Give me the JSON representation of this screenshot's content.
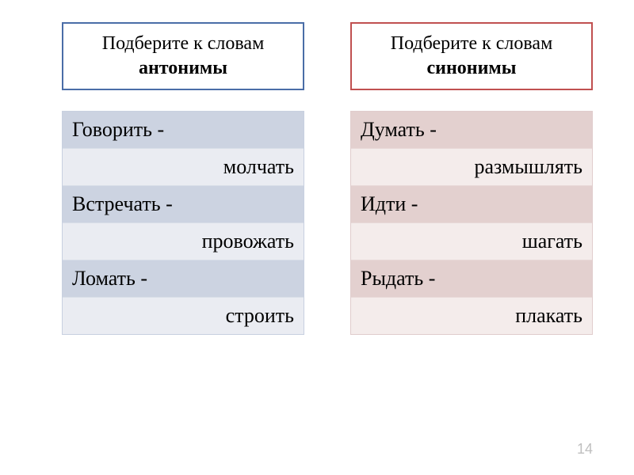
{
  "left": {
    "header": {
      "line1": "Подберите к словам",
      "line2": "антонимы",
      "border_color": "#4a6da7"
    },
    "rows": [
      {
        "kind": "word",
        "text": "Говорить -"
      },
      {
        "kind": "answer",
        "text": "молчать"
      },
      {
        "kind": "word",
        "text": "Встречать -"
      },
      {
        "kind": "answer",
        "text": "провожать"
      },
      {
        "kind": "word",
        "text": "Ломать -"
      },
      {
        "kind": "answer",
        "text": "строить"
      }
    ],
    "colors": {
      "word_bg": "#ccd3e1",
      "answer_bg": "#eaecf2",
      "border": "#c8d0e0"
    }
  },
  "right": {
    "header": {
      "line1": "Подберите к словам",
      "line2": "синонимы",
      "border_color": "#c05050"
    },
    "rows": [
      {
        "kind": "word",
        "text": "Думать -"
      },
      {
        "kind": "answer",
        "text": "размышлять"
      },
      {
        "kind": "word",
        "text": "Идти -"
      },
      {
        "kind": "answer",
        "text": "шагать"
      },
      {
        "kind": "word",
        "text": "Рыдать -"
      },
      {
        "kind": "answer",
        "text": "плакать"
      }
    ],
    "colors": {
      "word_bg": "#e3d0cf",
      "answer_bg": "#f4eceb",
      "border": "#e0cccc"
    }
  },
  "page_number": "14",
  "typography": {
    "header_fontsize": 24,
    "cell_fontsize": 26,
    "font_family": "Times New Roman"
  }
}
